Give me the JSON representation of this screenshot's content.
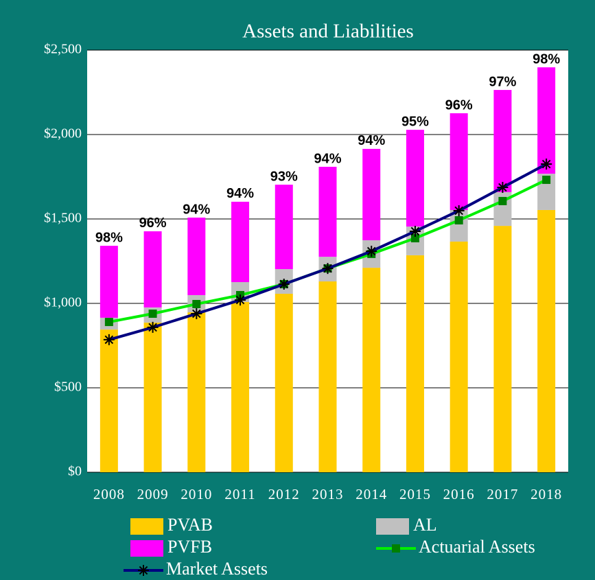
{
  "chart_data": {
    "type": "bar",
    "title": "Assets and Liabilities",
    "categories": [
      "2008",
      "2009",
      "2010",
      "2011",
      "2012",
      "2013",
      "2014",
      "2015",
      "2016",
      "2017",
      "2018"
    ],
    "stacked": true,
    "series": [
      {
        "name": "PVAB",
        "color": "#ffcc00",
        "values": [
          845,
          886,
          947,
          1008,
          1057,
          1130,
          1211,
          1285,
          1366,
          1459,
          1553
        ]
      },
      {
        "name": "AL",
        "color": "#c0c0c0",
        "values": [
          70,
          90,
          102,
          118,
          146,
          146,
          163,
          170,
          187,
          200,
          215
        ]
      },
      {
        "name": "PVFB",
        "color": "#ff00ff",
        "values": [
          426,
          451,
          459,
          476,
          500,
          533,
          541,
          573,
          573,
          605,
          630
        ],
        "value_labels": [
          "98%",
          "96%",
          "94%",
          "94%",
          "93%",
          "94%",
          "94%",
          "95%",
          "96%",
          "97%",
          "98%"
        ]
      },
      {
        "name": "Actuarial Assets",
        "type": "line",
        "color": "#00ee00",
        "marker": "square",
        "marker_color": "#008000",
        "values": [
          890,
          939,
          996,
          1049,
          1114,
          1207,
          1293,
          1386,
          1492,
          1606,
          1732
        ]
      },
      {
        "name": "Market Assets",
        "type": "line",
        "color": "#000080",
        "marker": "asterisk",
        "marker_color": "#000000",
        "values": [
          785,
          858,
          939,
          1020,
          1114,
          1207,
          1309,
          1427,
          1549,
          1687,
          1825
        ]
      }
    ],
    "funded_ratio": [
      98,
      96,
      94,
      94,
      93,
      94,
      94,
      95,
      96,
      97,
      98
    ],
    "ylim": [
      0,
      2500
    ],
    "yticks": [
      {
        "value": 0,
        "label": "$0"
      },
      {
        "value": 500,
        "label": "$500"
      },
      {
        "value": 1000,
        "label": "$1,000"
      },
      {
        "value": 1500,
        "label": "$1,500"
      },
      {
        "value": 2000,
        "label": "$2,000"
      },
      {
        "value": 2500,
        "label": "$2,500"
      }
    ],
    "grid": true,
    "legend": "bottom"
  }
}
